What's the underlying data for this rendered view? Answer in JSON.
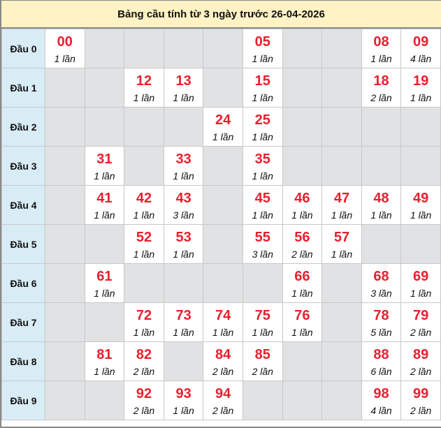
{
  "title": "Bảng cầu tính từ 3 ngày trước 26-04-2026",
  "colors": {
    "number": "#e8202e",
    "header_bg": "#fff2c4",
    "row_head_bg": "#d8ecf6",
    "empty_bg": "#e1e2e4"
  },
  "rows": [
    {
      "label": "Đầu 0",
      "cells": [
        {
          "num": "00",
          "count": "1 lần"
        },
        null,
        null,
        null,
        null,
        {
          "num": "05",
          "count": "1 lần"
        },
        null,
        null,
        {
          "num": "08",
          "count": "1 lần"
        },
        {
          "num": "09",
          "count": "4 lần"
        }
      ]
    },
    {
      "label": "Đầu 1",
      "cells": [
        null,
        null,
        {
          "num": "12",
          "count": "1 lần"
        },
        {
          "num": "13",
          "count": "1 lần"
        },
        null,
        {
          "num": "15",
          "count": "1 lần"
        },
        null,
        null,
        {
          "num": "18",
          "count": "2 lần"
        },
        {
          "num": "19",
          "count": "1 lần"
        }
      ]
    },
    {
      "label": "Đầu 2",
      "cells": [
        null,
        null,
        null,
        null,
        {
          "num": "24",
          "count": "1 lần"
        },
        {
          "num": "25",
          "count": "1 lần"
        },
        null,
        null,
        null,
        null
      ]
    },
    {
      "label": "Đầu 3",
      "cells": [
        null,
        {
          "num": "31",
          "count": "1 lần"
        },
        null,
        {
          "num": "33",
          "count": "1 lần"
        },
        null,
        {
          "num": "35",
          "count": "1 lần"
        },
        null,
        null,
        null,
        null
      ]
    },
    {
      "label": "Đầu 4",
      "cells": [
        null,
        {
          "num": "41",
          "count": "1 lần"
        },
        {
          "num": "42",
          "count": "1 lần"
        },
        {
          "num": "43",
          "count": "3 lần"
        },
        null,
        {
          "num": "45",
          "count": "1 lần"
        },
        {
          "num": "46",
          "count": "1 lần"
        },
        {
          "num": "47",
          "count": "1 lần"
        },
        {
          "num": "48",
          "count": "1 lần"
        },
        {
          "num": "49",
          "count": "1 lần"
        }
      ]
    },
    {
      "label": "Đầu 5",
      "cells": [
        null,
        null,
        {
          "num": "52",
          "count": "1 lần"
        },
        {
          "num": "53",
          "count": "1 lần"
        },
        null,
        {
          "num": "55",
          "count": "3 lần"
        },
        {
          "num": "56",
          "count": "2 lần"
        },
        {
          "num": "57",
          "count": "1 lần"
        },
        null,
        null
      ]
    },
    {
      "label": "Đầu 6",
      "cells": [
        null,
        {
          "num": "61",
          "count": "1 lần"
        },
        null,
        null,
        null,
        null,
        {
          "num": "66",
          "count": "1 lần"
        },
        null,
        {
          "num": "68",
          "count": "3 lần"
        },
        {
          "num": "69",
          "count": "1 lần"
        }
      ]
    },
    {
      "label": "Đầu 7",
      "cells": [
        null,
        null,
        {
          "num": "72",
          "count": "1 lần"
        },
        {
          "num": "73",
          "count": "1 lần"
        },
        {
          "num": "74",
          "count": "1 lần"
        },
        {
          "num": "75",
          "count": "1 lần"
        },
        {
          "num": "76",
          "count": "1 lần"
        },
        null,
        {
          "num": "78",
          "count": "5 lần"
        },
        {
          "num": "79",
          "count": "2 lần"
        }
      ]
    },
    {
      "label": "Đầu 8",
      "cells": [
        null,
        {
          "num": "81",
          "count": "1 lần"
        },
        {
          "num": "82",
          "count": "2 lần"
        },
        null,
        {
          "num": "84",
          "count": "2 lần"
        },
        {
          "num": "85",
          "count": "2 lần"
        },
        null,
        null,
        {
          "num": "88",
          "count": "6 lần"
        },
        {
          "num": "89",
          "count": "2 lần"
        }
      ]
    },
    {
      "label": "Đầu 9",
      "cells": [
        null,
        null,
        {
          "num": "92",
          "count": "2 lần"
        },
        {
          "num": "93",
          "count": "1 lần"
        },
        {
          "num": "94",
          "count": "2 lần"
        },
        null,
        null,
        null,
        {
          "num": "98",
          "count": "4 lần"
        },
        {
          "num": "99",
          "count": "2 lần"
        }
      ]
    }
  ]
}
